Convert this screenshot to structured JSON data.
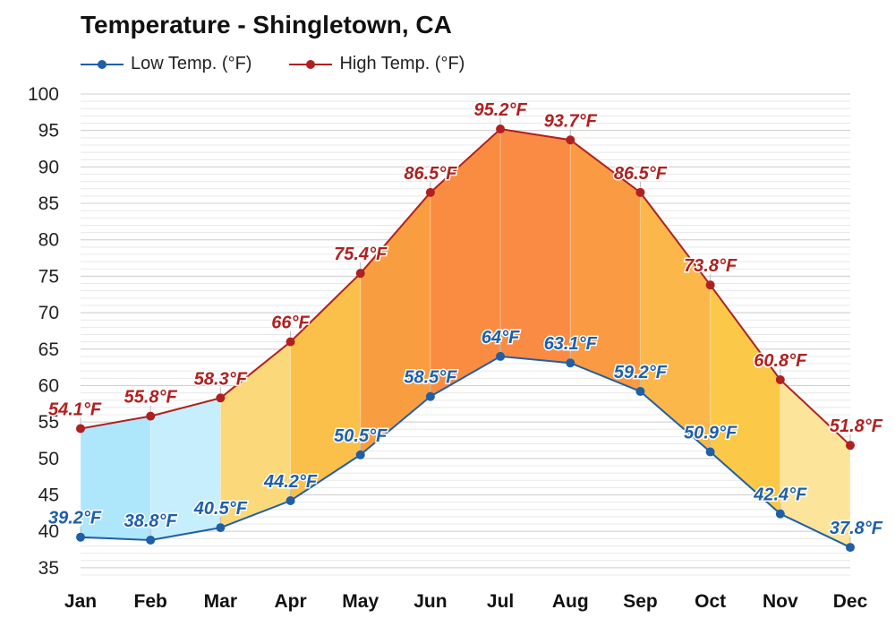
{
  "chart_data": {
    "type": "line",
    "title": "Temperature - Shingletown, CA",
    "categories": [
      "Jan",
      "Feb",
      "Mar",
      "Apr",
      "May",
      "Jun",
      "Jul",
      "Aug",
      "Sep",
      "Oct",
      "Nov",
      "Dec"
    ],
    "series": [
      {
        "name": "Low Temp. (°F)",
        "color": "#1f5fa8",
        "values": [
          39.2,
          38.8,
          40.5,
          44.2,
          50.5,
          58.5,
          64,
          63.1,
          59.2,
          50.9,
          42.4,
          37.8
        ],
        "labels": [
          "39.2°F",
          "38.8°F",
          "40.5°F",
          "44.2°F",
          "50.5°F",
          "58.5°F",
          "64°F",
          "63.1°F",
          "59.2°F",
          "50.9°F",
          "42.4°F",
          "37.8°F"
        ]
      },
      {
        "name": "High Temp. (°F)",
        "color": "#b02020",
        "values": [
          54.1,
          55.8,
          58.3,
          66,
          75.4,
          86.5,
          95.2,
          93.7,
          86.5,
          73.8,
          60.8,
          51.8
        ],
        "labels": [
          "54.1°F",
          "55.8°F",
          "58.3°F",
          "66°F",
          "75.4°F",
          "86.5°F",
          "95.2°F",
          "93.7°F",
          "86.5°F",
          "73.8°F",
          "60.8°F",
          "51.8°F"
        ]
      }
    ],
    "month_fill_colors": [
      "#aee6fb",
      "#c6eefc",
      "#fbd97a",
      "#fbc04a",
      "#f99e40",
      "#f98c40",
      "#f98b45",
      "#fa9a42",
      "#fbb74a",
      "#fbc947",
      "#fce49b",
      "#8fdcf7"
    ],
    "yticks": [
      35,
      40,
      45,
      50,
      55,
      60,
      65,
      70,
      75,
      80,
      85,
      90,
      95,
      100
    ],
    "ylim": [
      34,
      100
    ],
    "xlabel": "",
    "ylabel": "",
    "grid": true,
    "legend_position": "top-left"
  }
}
